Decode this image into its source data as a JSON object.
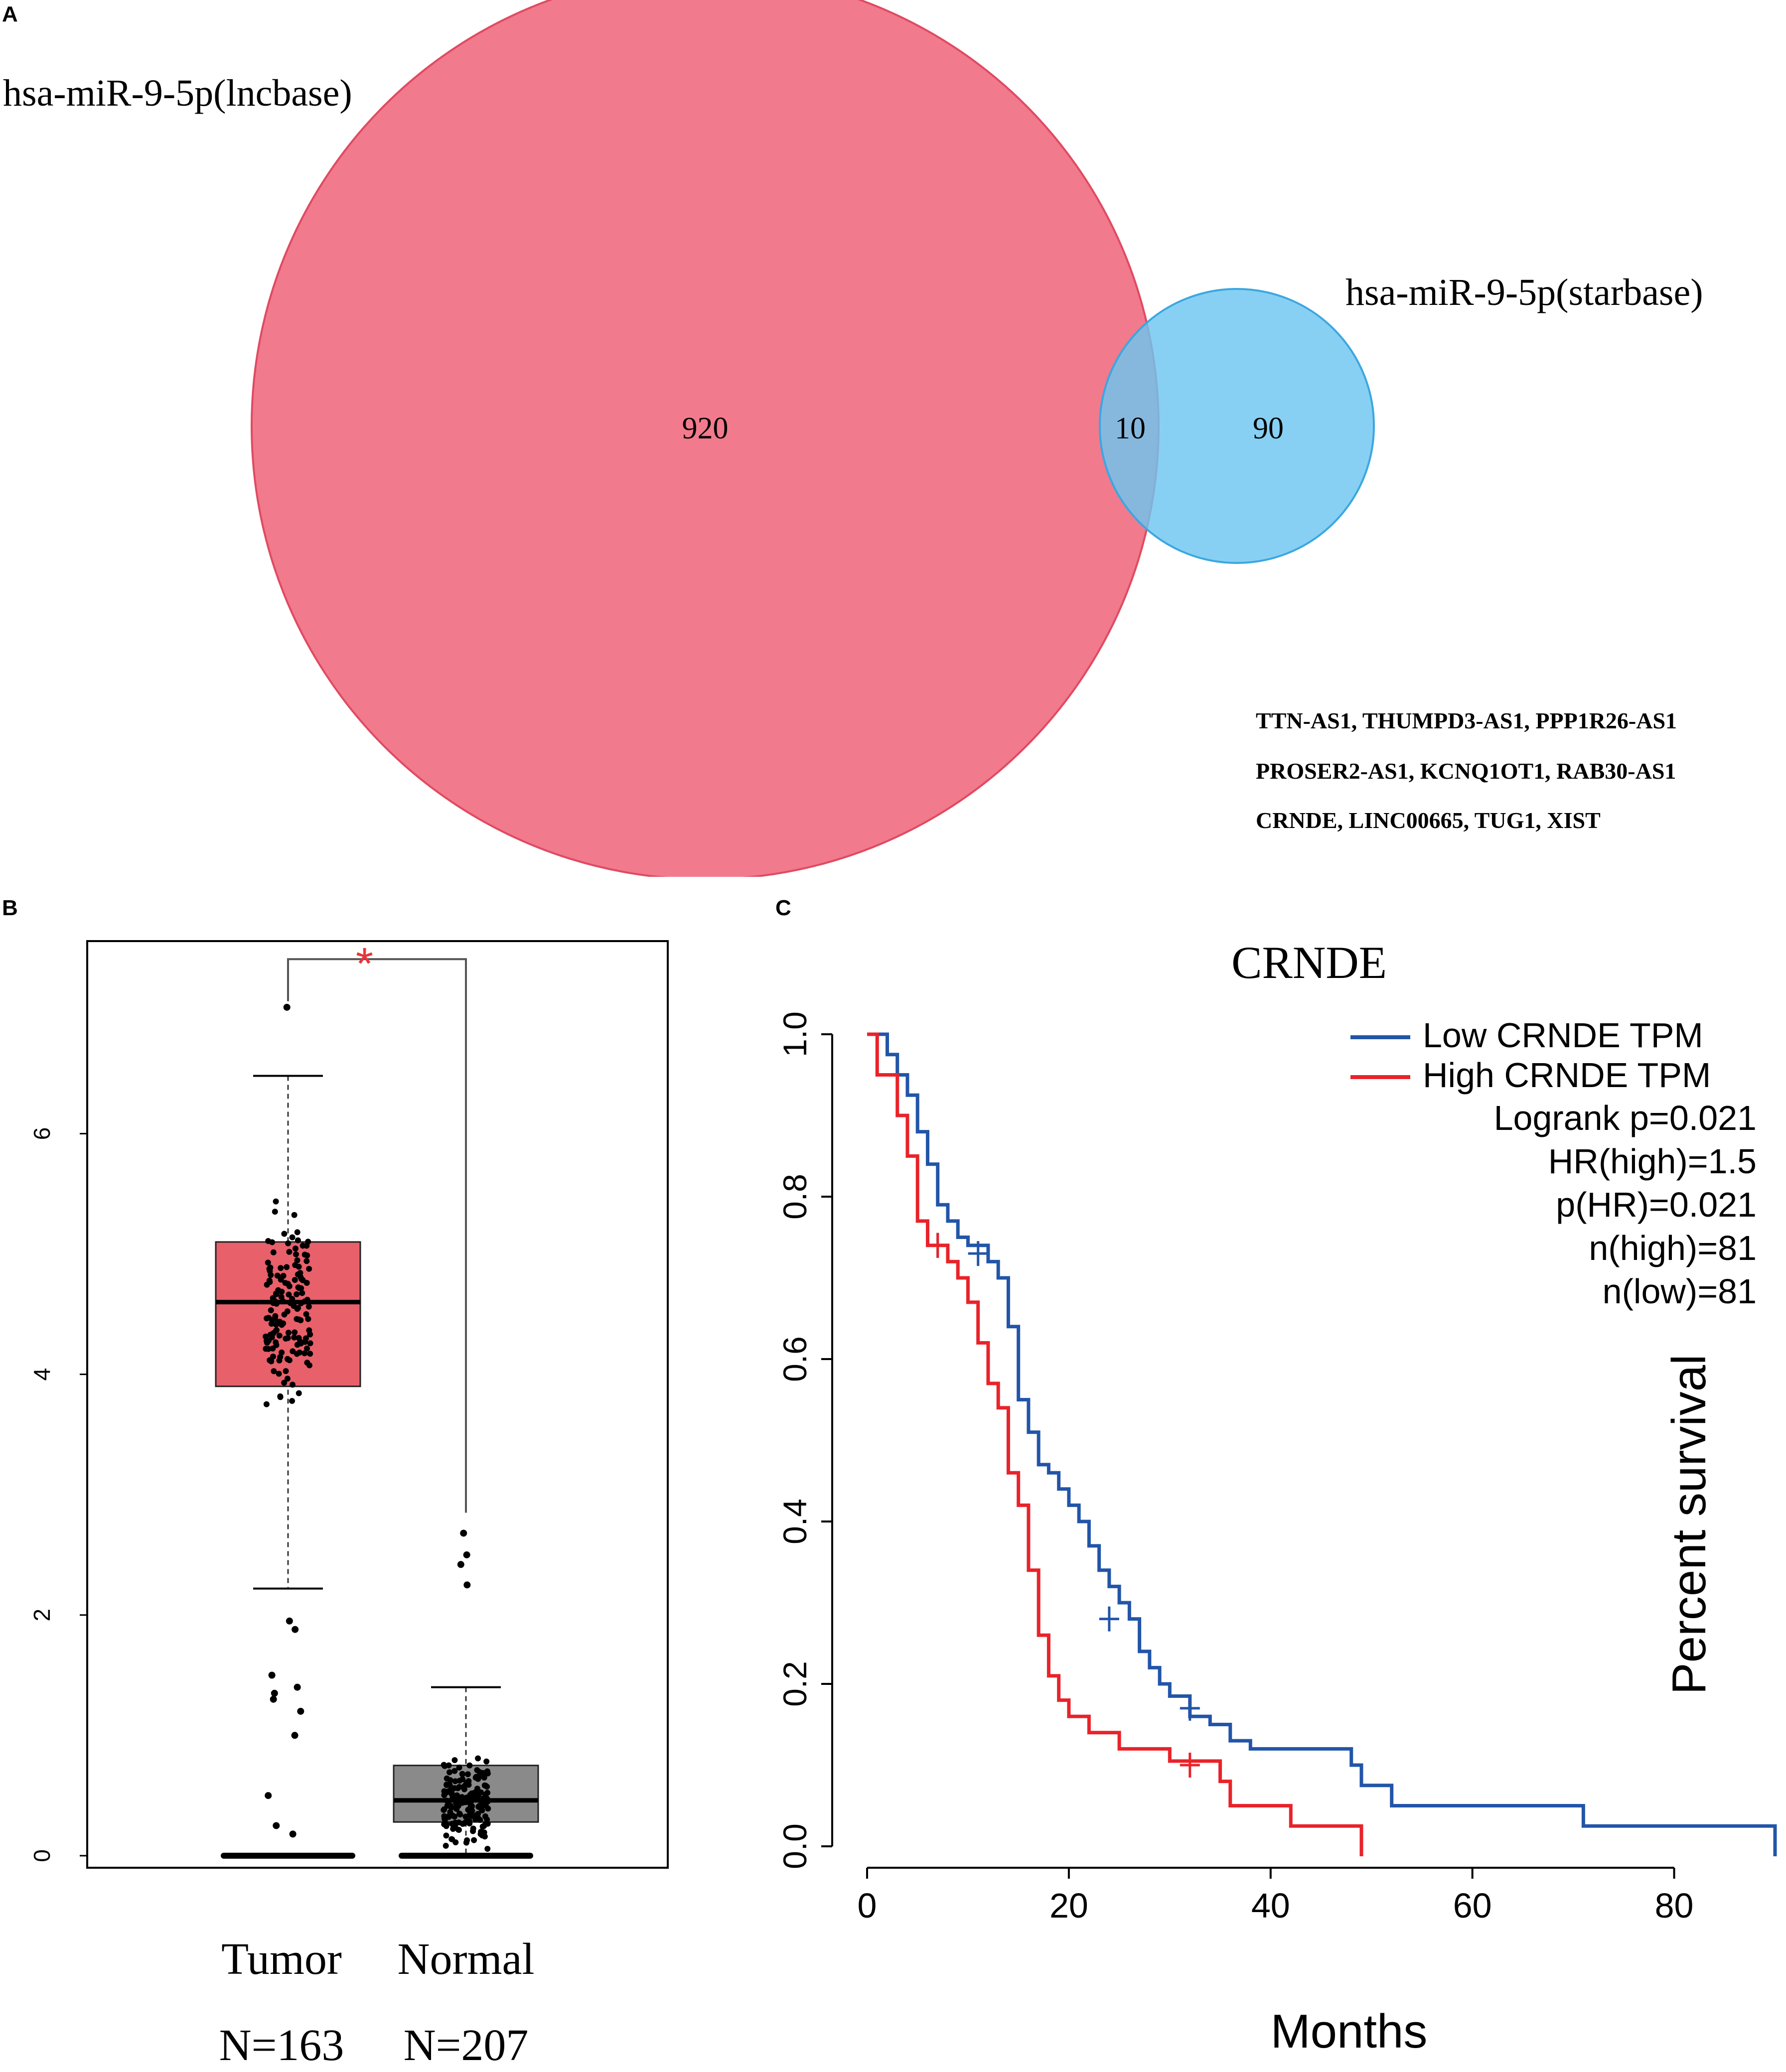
{
  "panels": {
    "a": "A",
    "b": "B",
    "c": "C"
  },
  "chart_data": [
    {
      "type": "venn",
      "sets": [
        {
          "name": "hsa-miR-9-5p(lncbase)",
          "size": 930,
          "color": "#ef6b80"
        },
        {
          "name": "hsa-miR-9-5p(starbase)",
          "size": 100,
          "color": "#6ec6f0"
        }
      ],
      "regions": {
        "only_a": "920",
        "overlap": "10",
        "only_b": "90"
      },
      "overlap_genes": [
        "TTN-AS1, THUMPD3-AS1, PPP1R26-AS1",
        "PROSER2-AS1, KCNQ1OT1, RAB30-AS1",
        "CRNDE, LINC00665, TUG1, XIST"
      ]
    },
    {
      "type": "box",
      "categories": [
        "Tumor",
        "Normal"
      ],
      "counts": [
        "N=163",
        "N=207"
      ],
      "boxes": [
        {
          "name": "Tumor",
          "whisker_low": 2.22,
          "q1": 3.9,
          "median": 4.6,
          "q3": 5.1,
          "whisker_high": 6.48,
          "color": "#e8606a",
          "outliers": [
            7.05,
            1.95,
            1.88,
            1.5,
            1.4,
            1.35,
            1.3,
            1.2,
            1.0,
            0.5,
            0.25,
            0.18
          ]
        },
        {
          "name": "Normal",
          "whisker_low": 0.0,
          "q1": 0.28,
          "median": 0.46,
          "q3": 0.75,
          "whisker_high": 1.4,
          "color": "#8a8a8a",
          "outliers": [
            2.68,
            2.5,
            2.42,
            2.25
          ]
        }
      ],
      "significance": "*",
      "significance_color": "#e8333a",
      "yticks": [
        "0",
        "2",
        "4",
        "6"
      ],
      "ylim": [
        -0.1,
        7.6
      ]
    },
    {
      "type": "line",
      "title": "CRNDE",
      "xlabel": "Months",
      "ylabel": "Percent survival",
      "xticks": [
        "0",
        "20",
        "40",
        "60",
        "80"
      ],
      "yticks": [
        "0.0",
        "0.2",
        "0.4",
        "0.6",
        "0.8",
        "1.0"
      ],
      "xlim": [
        0,
        90
      ],
      "ylim": [
        0,
        1.0
      ],
      "series": [
        {
          "name": "Low CRNDE TPM",
          "color": "#2255a8",
          "points": [
            [
              0,
              1.0
            ],
            [
              2,
              0.975
            ],
            [
              3,
              0.95
            ],
            [
              4,
              0.925
            ],
            [
              5,
              0.88
            ],
            [
              6,
              0.84
            ],
            [
              7,
              0.79
            ],
            [
              8,
              0.77
            ],
            [
              9,
              0.75
            ],
            [
              10,
              0.74
            ],
            [
              12,
              0.72
            ],
            [
              13,
              0.7
            ],
            [
              14,
              0.64
            ],
            [
              15,
              0.55
            ],
            [
              16,
              0.51
            ],
            [
              17,
              0.47
            ],
            [
              18,
              0.46
            ],
            [
              19,
              0.44
            ],
            [
              20,
              0.42
            ],
            [
              21,
              0.4
            ],
            [
              22,
              0.37
            ],
            [
              23,
              0.34
            ],
            [
              24,
              0.32
            ],
            [
              25,
              0.3
            ],
            [
              26,
              0.28
            ],
            [
              27,
              0.24
            ],
            [
              28,
              0.22
            ],
            [
              29,
              0.2
            ],
            [
              30,
              0.185
            ],
            [
              32,
              0.16
            ],
            [
              34,
              0.15
            ],
            [
              36,
              0.13
            ],
            [
              38,
              0.12
            ],
            [
              48,
              0.1
            ],
            [
              49,
              0.075
            ],
            [
              52,
              0.05
            ],
            [
              71,
              0.025
            ],
            [
              90,
              0.0
            ]
          ],
          "censored": [
            [
              7,
              0.74
            ],
            [
              11,
              0.73
            ],
            [
              24,
              0.28
            ],
            [
              32,
              0.17
            ]
          ]
        },
        {
          "name": "High CRNDE TPM",
          "color": "#e8232a",
          "points": [
            [
              0,
              1.0
            ],
            [
              1,
              0.95
            ],
            [
              3,
              0.9
            ],
            [
              4,
              0.85
            ],
            [
              5,
              0.77
            ],
            [
              6,
              0.74
            ],
            [
              8,
              0.72
            ],
            [
              9,
              0.7
            ],
            [
              10,
              0.67
            ],
            [
              11,
              0.62
            ],
            [
              12,
              0.57
            ],
            [
              13,
              0.54
            ],
            [
              14,
              0.46
            ],
            [
              15,
              0.42
            ],
            [
              16,
              0.34
            ],
            [
              17,
              0.26
            ],
            [
              18,
              0.21
            ],
            [
              19,
              0.18
            ],
            [
              20,
              0.16
            ],
            [
              22,
              0.14
            ],
            [
              25,
              0.12
            ],
            [
              30,
              0.105
            ],
            [
              35,
              0.08
            ],
            [
              36,
              0.05
            ],
            [
              42,
              0.025
            ],
            [
              49,
              0.0
            ]
          ],
          "censored": [
            [
              7,
              0.74
            ],
            [
              32,
              0.1
            ]
          ]
        }
      ],
      "stats": [
        "Logrank p=0.021",
        "HR(high)=1.5",
        "p(HR)=0.021",
        "n(high)=81",
        "n(low)=81"
      ]
    }
  ]
}
